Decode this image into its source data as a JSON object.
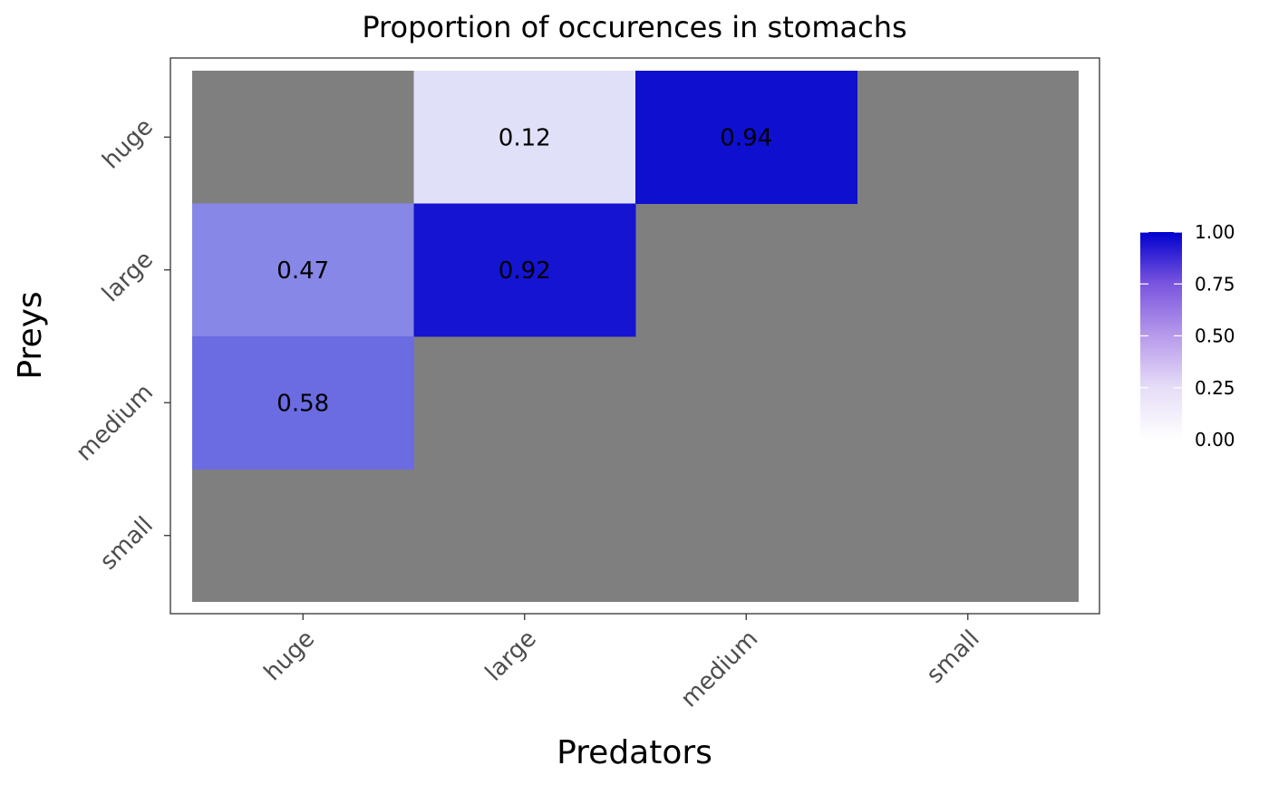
{
  "chart_data": {
    "type": "heatmap",
    "title": "Proportion of occurences in stomachs",
    "xlabel": "Predators",
    "ylabel": "Preys",
    "x_categories": [
      "huge",
      "large",
      "medium",
      "small"
    ],
    "y_categories": [
      "huge",
      "large",
      "medium",
      "small"
    ],
    "cells": [
      {
        "x": "large",
        "y": "huge",
        "value": 0.12,
        "label": "0.12"
      },
      {
        "x": "medium",
        "y": "huge",
        "value": 0.94,
        "label": "0.94"
      },
      {
        "x": "huge",
        "y": "large",
        "value": 0.47,
        "label": "0.47"
      },
      {
        "x": "large",
        "y": "large",
        "value": 0.92,
        "label": "0.92"
      },
      {
        "x": "huge",
        "y": "medium",
        "value": 0.58,
        "label": "0.58"
      }
    ],
    "missing_color": "#7f7f7f",
    "color_scale": {
      "low": "#ffffff",
      "high": "#0000cd",
      "limits": [
        0,
        1
      ]
    },
    "legend": {
      "position": "right",
      "ticks": [
        0,
        0.25,
        0.5,
        0.75,
        1
      ],
      "tick_labels": [
        "0.00",
        "0.25",
        "0.50",
        "0.75",
        "1.00"
      ]
    },
    "grid": false
  }
}
